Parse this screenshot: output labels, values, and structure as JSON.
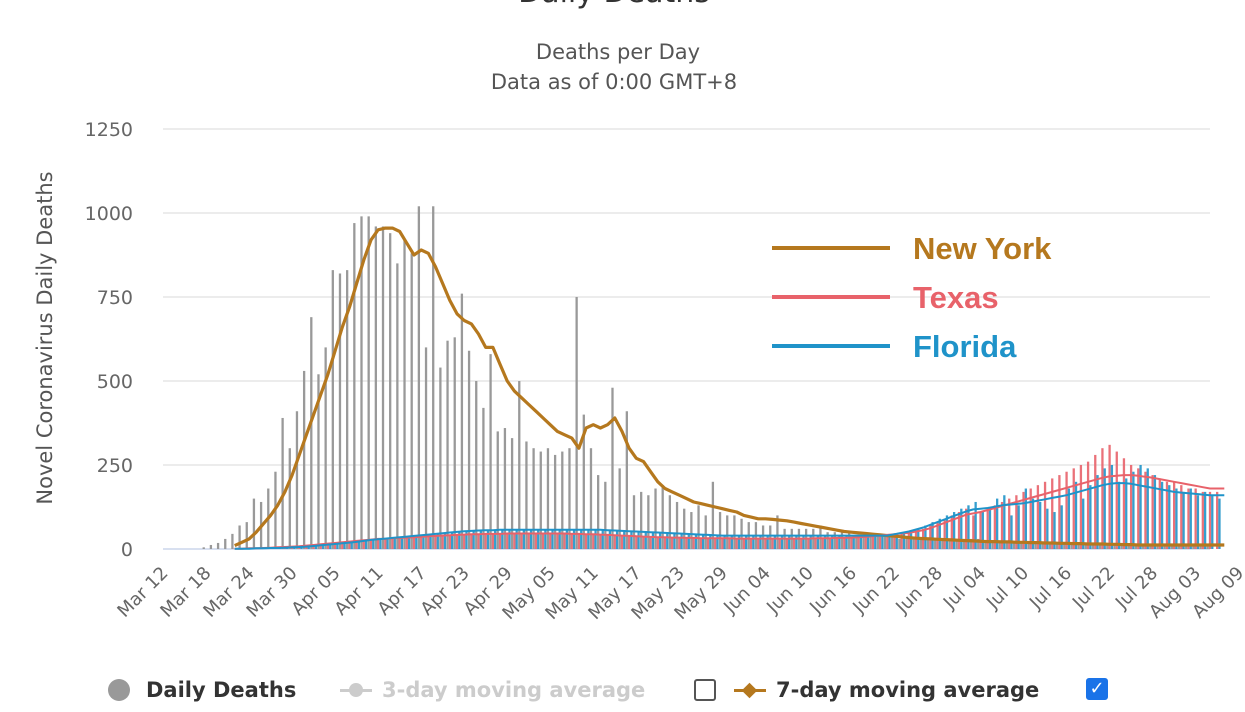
{
  "chart_data": {
    "type": "bar",
    "title": "Daily Deaths",
    "subtitle": "Deaths per Day",
    "subtitle2": "Data as of 0:00 GMT+8",
    "ylabel": "Novel Coronavirus Daily Deaths",
    "ylim": [
      0,
      1250
    ],
    "yticks": [
      0,
      250,
      500,
      750,
      1000,
      1250
    ],
    "x_start": "Mar 12",
    "xticks": [
      "Mar 12",
      "Mar 18",
      "Mar 24",
      "Mar 30",
      "Apr 05",
      "Apr 11",
      "Apr 17",
      "Apr 23",
      "Apr 29",
      "May 05",
      "May 11",
      "May 17",
      "May 23",
      "May 29",
      "Jun 04",
      "Jun 10",
      "Jun 16",
      "Jun 22",
      "Jun 28",
      "Jul 04",
      "Jul 10",
      "Jul 16",
      "Jul 22",
      "Jul 28",
      "Aug 03",
      "Aug 09"
    ],
    "grid": true,
    "legend_position": "top-right",
    "series": [
      {
        "name": "New York",
        "color": "#b5781e",
        "daily": [
          0,
          0,
          0,
          0,
          0,
          0,
          5,
          12,
          18,
          30,
          45,
          70,
          80,
          150,
          140,
          180,
          230,
          390,
          300,
          410,
          530,
          690,
          520,
          600,
          830,
          820,
          830,
          970,
          990,
          990,
          960,
          960,
          940,
          850,
          920,
          880,
          1020,
          600,
          1020,
          540,
          620,
          630,
          760,
          590,
          500,
          420,
          580,
          350,
          360,
          330,
          500,
          320,
          300,
          290,
          300,
          280,
          290,
          300,
          750,
          400,
          300,
          220,
          200,
          480,
          240,
          410,
          160,
          170,
          160,
          180,
          190,
          160,
          140,
          120,
          110,
          130,
          100,
          200,
          110,
          100,
          100,
          90,
          80,
          80,
          70,
          70,
          100,
          60,
          60,
          60,
          60,
          60,
          70,
          50,
          50,
          50,
          50,
          40,
          40,
          40,
          40,
          40,
          40,
          30,
          30,
          30,
          30,
          30,
          30,
          30,
          30,
          30,
          30,
          30,
          30,
          20,
          20,
          20,
          20,
          20,
          20,
          20,
          20,
          20,
          20,
          20,
          20,
          20,
          20,
          15,
          15,
          15,
          15,
          15,
          15,
          15,
          15,
          15,
          15,
          10,
          10,
          10,
          10,
          10,
          10,
          10,
          10
        ],
        "avg7": [
          null,
          null,
          null,
          null,
          null,
          null,
          null,
          null,
          null,
          null,
          10,
          20,
          30,
          50,
          75,
          100,
          130,
          170,
          220,
          280,
          340,
          400,
          460,
          520,
          590,
          660,
          720,
          790,
          860,
          920,
          950,
          955,
          955,
          945,
          910,
          875,
          890,
          880,
          840,
          790,
          740,
          700,
          680,
          670,
          640,
          600,
          600,
          550,
          500,
          470,
          450,
          430,
          410,
          390,
          370,
          350,
          340,
          330,
          300,
          360,
          370,
          360,
          370,
          390,
          350,
          300,
          270,
          260,
          230,
          200,
          180,
          170,
          160,
          150,
          140,
          135,
          130,
          125,
          120,
          115,
          110,
          100,
          95,
          90,
          90,
          88,
          86,
          84,
          80,
          76,
          72,
          68,
          64,
          60,
          56,
          52,
          50,
          48,
          46,
          44,
          42,
          40,
          38,
          36,
          34,
          32,
          31,
          30,
          29,
          28,
          27,
          26,
          25,
          24,
          23,
          22,
          22,
          21,
          21,
          20,
          20,
          19,
          19,
          18,
          18,
          17,
          17,
          16,
          16,
          15,
          15,
          15,
          14,
          14,
          13,
          13,
          12,
          12,
          12,
          12,
          12,
          12,
          12,
          12,
          12,
          12,
          12,
          12,
          12
        ]
      },
      {
        "name": "Texas",
        "color": "#e8626a",
        "daily": [
          0,
          0,
          0,
          0,
          0,
          0,
          0,
          0,
          0,
          0,
          1,
          2,
          2,
          3,
          4,
          5,
          5,
          6,
          8,
          10,
          12,
          14,
          15,
          18,
          20,
          22,
          24,
          25,
          26,
          28,
          30,
          30,
          32,
          34,
          35,
          36,
          38,
          40,
          40,
          42,
          42,
          44,
          44,
          45,
          45,
          46,
          46,
          46,
          46,
          46,
          46,
          46,
          46,
          46,
          46,
          46,
          46,
          45,
          45,
          44,
          44,
          43,
          42,
          42,
          40,
          38,
          37,
          36,
          35,
          35,
          34,
          34,
          33,
          33,
          32,
          32,
          32,
          32,
          32,
          32,
          30,
          30,
          30,
          30,
          30,
          30,
          30,
          30,
          30,
          30,
          30,
          32,
          32,
          33,
          33,
          34,
          35,
          36,
          38,
          40,
          42,
          44,
          46,
          48,
          50,
          55,
          60,
          70,
          80,
          90,
          100,
          110,
          120,
          100,
          110,
          120,
          130,
          140,
          150,
          160,
          170,
          180,
          190,
          200,
          210,
          220,
          230,
          240,
          250,
          260,
          280,
          300,
          310,
          290,
          270,
          250,
          240,
          230,
          220,
          210,
          200,
          200,
          190,
          180,
          180,
          170,
          170,
          170
        ],
        "avg7": [
          null,
          null,
          null,
          null,
          null,
          null,
          null,
          null,
          null,
          null,
          1,
          1,
          2,
          2,
          3,
          4,
          5,
          6,
          7,
          8,
          10,
          12,
          14,
          16,
          18,
          20,
          22,
          24,
          26,
          28,
          30,
          30,
          32,
          33,
          34,
          35,
          36,
          38,
          39,
          40,
          41,
          42,
          43,
          44,
          44,
          45,
          45,
          45,
          46,
          46,
          46,
          46,
          46,
          46,
          46,
          46,
          46,
          45,
          45,
          44,
          44,
          43,
          42,
          41,
          40,
          39,
          38,
          37,
          36,
          35,
          35,
          34,
          34,
          33,
          33,
          32,
          32,
          32,
          32,
          32,
          31,
          31,
          31,
          31,
          31,
          31,
          31,
          31,
          31,
          31,
          31,
          32,
          32,
          32,
          33,
          33,
          34,
          35,
          36,
          38,
          40,
          42,
          44,
          46,
          48,
          52,
          56,
          62,
          70,
          78,
          86,
          94,
          102,
          106,
          110,
          116,
          122,
          128,
          134,
          140,
          146,
          152,
          158,
          164,
          170,
          176,
          182,
          188,
          194,
          200,
          206,
          212,
          216,
          218,
          220,
          220,
          218,
          215,
          212,
          208,
          204,
          200,
          196,
          192,
          188,
          184,
          180,
          180,
          180
        ]
      },
      {
        "name": "Florida",
        "color": "#1f93c9",
        "daily": [
          0,
          0,
          0,
          0,
          0,
          0,
          0,
          0,
          0,
          0,
          1,
          1,
          2,
          2,
          3,
          3,
          4,
          4,
          5,
          6,
          8,
          10,
          12,
          14,
          16,
          18,
          20,
          22,
          25,
          28,
          30,
          32,
          34,
          36,
          38,
          40,
          42,
          45,
          46,
          48,
          50,
          52,
          54,
          55,
          56,
          57,
          58,
          58,
          58,
          58,
          58,
          58,
          58,
          58,
          58,
          58,
          58,
          58,
          58,
          58,
          58,
          58,
          57,
          56,
          55,
          54,
          53,
          52,
          51,
          50,
          49,
          48,
          47,
          46,
          45,
          44,
          43,
          42,
          41,
          40,
          40,
          40,
          40,
          40,
          40,
          40,
          40,
          40,
          40,
          40,
          40,
          40,
          40,
          40,
          40,
          40,
          40,
          40,
          40,
          40,
          40,
          40,
          45,
          50,
          55,
          60,
          70,
          80,
          90,
          100,
          110,
          120,
          130,
          140,
          110,
          120,
          150,
          160,
          100,
          130,
          180,
          150,
          140,
          120,
          110,
          130,
          180,
          200,
          150,
          190,
          220,
          240,
          250,
          200,
          210,
          230,
          250,
          240,
          220,
          200,
          190,
          180,
          170,
          180,
          160,
          170,
          160,
          150
        ],
        "avg7": [
          null,
          null,
          null,
          null,
          null,
          null,
          null,
          null,
          null,
          null,
          1,
          1,
          1,
          2,
          2,
          3,
          3,
          4,
          5,
          6,
          7,
          9,
          11,
          13,
          15,
          17,
          19,
          21,
          24,
          27,
          29,
          31,
          33,
          35,
          37,
          39,
          41,
          43,
          45,
          47,
          49,
          51,
          53,
          54,
          55,
          56,
          56,
          57,
          57,
          57,
          57,
          57,
          57,
          57,
          57,
          57,
          57,
          57,
          57,
          57,
          57,
          57,
          56,
          55,
          54,
          53,
          52,
          51,
          50,
          49,
          48,
          47,
          46,
          45,
          44,
          43,
          42,
          41,
          40,
          40,
          40,
          40,
          40,
          40,
          40,
          40,
          40,
          40,
          40,
          40,
          40,
          40,
          40,
          40,
          40,
          40,
          40,
          40,
          40,
          40,
          40,
          40,
          44,
          48,
          52,
          58,
          64,
          72,
          80,
          88,
          96,
          104,
          112,
          118,
          120,
          122,
          126,
          130,
          132,
          134,
          136,
          140,
          144,
          148,
          152,
          156,
          160,
          166,
          172,
          178,
          184,
          190,
          194,
          196,
          196,
          194,
          190,
          186,
          182,
          178,
          174,
          170,
          168,
          166,
          164,
          162,
          160,
          160,
          160
        ]
      }
    ]
  },
  "legend": {
    "daily_label": "Daily Deaths",
    "avg3_label": "3-day moving average",
    "avg7_label": "7-day moving average"
  },
  "colors": {
    "bars": "#999999",
    "grid": "#e6e6e6",
    "avg3_disabled": "#cccccc",
    "avg7_marker": "#b5781e",
    "checkbox_on": "#1a73e8"
  }
}
